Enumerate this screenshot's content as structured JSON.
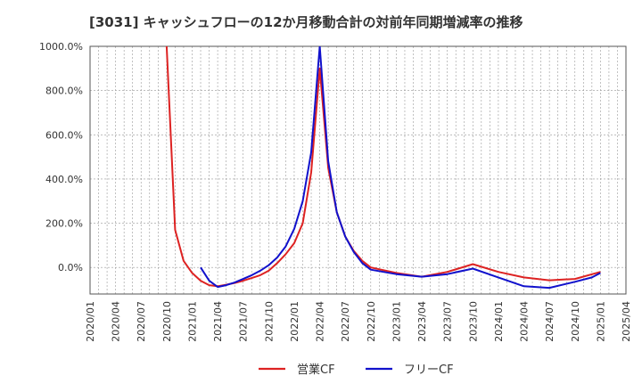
{
  "chart_data": {
    "type": "line",
    "title": "[3031]  キャッシュフローの12か月移動合計の対前年同期増減率の推移",
    "xlabel": "",
    "ylabel": "",
    "x_start": "2020/01",
    "x_end": "2025/04",
    "ylim": [
      -120,
      1000
    ],
    "y_ticks": [
      0,
      200,
      400,
      600,
      800,
      1000
    ],
    "y_tick_labels": [
      "0.0%",
      "200.0%",
      "400.0%",
      "600.0%",
      "800.0%",
      "1000.0%"
    ],
    "x_tick_labels": [
      "2020/01",
      "2020/04",
      "2020/07",
      "2020/10",
      "2021/01",
      "2021/04",
      "2021/07",
      "2021/10",
      "2022/01",
      "2022/04",
      "2022/07",
      "2022/10",
      "2023/01",
      "2023/04",
      "2023/07",
      "2023/10",
      "2024/01",
      "2024/04",
      "2024/07",
      "2024/10",
      "2025/01",
      "2025/04"
    ],
    "grid": true,
    "legend_position": "bottom",
    "series": [
      {
        "name": "営業CF",
        "color": "#dd2222",
        "points": [
          [
            9,
            1000
          ],
          [
            10,
            170
          ],
          [
            11,
            30
          ],
          [
            12,
            -25
          ],
          [
            13,
            -60
          ],
          [
            14,
            -80
          ],
          [
            15,
            -85
          ],
          [
            16,
            -78
          ],
          [
            17,
            -70
          ],
          [
            18,
            -60
          ],
          [
            19,
            -48
          ],
          [
            20,
            -35
          ],
          [
            21,
            -15
          ],
          [
            22,
            20
          ],
          [
            23,
            60
          ],
          [
            24,
            110
          ],
          [
            25,
            200
          ],
          [
            26,
            430
          ],
          [
            27,
            900
          ],
          [
            28,
            450
          ],
          [
            29,
            250
          ],
          [
            30,
            140
          ],
          [
            31,
            75
          ],
          [
            32,
            30
          ],
          [
            33,
            0
          ],
          [
            36,
            -25
          ],
          [
            39,
            -42
          ],
          [
            42,
            -20
          ],
          [
            45,
            15
          ],
          [
            48,
            -20
          ],
          [
            51,
            -45
          ],
          [
            54,
            -58
          ],
          [
            57,
            -52
          ],
          [
            60,
            -20
          ]
        ]
      },
      {
        "name": "フリーCF",
        "color": "#1111cc",
        "points": [
          [
            13,
            0
          ],
          [
            14,
            -60
          ],
          [
            15,
            -88
          ],
          [
            16,
            -80
          ],
          [
            17,
            -68
          ],
          [
            18,
            -52
          ],
          [
            19,
            -35
          ],
          [
            20,
            -15
          ],
          [
            21,
            10
          ],
          [
            22,
            45
          ],
          [
            23,
            95
          ],
          [
            24,
            175
          ],
          [
            25,
            300
          ],
          [
            26,
            520
          ],
          [
            27,
            1000
          ],
          [
            28,
            480
          ],
          [
            29,
            250
          ],
          [
            30,
            140
          ],
          [
            31,
            70
          ],
          [
            32,
            20
          ],
          [
            33,
            -10
          ],
          [
            36,
            -30
          ],
          [
            39,
            -42
          ],
          [
            42,
            -30
          ],
          [
            45,
            -5
          ],
          [
            48,
            -45
          ],
          [
            51,
            -85
          ],
          [
            54,
            -92
          ],
          [
            57,
            -65
          ],
          [
            59,
            -45
          ],
          [
            60,
            -25
          ]
        ]
      }
    ]
  }
}
